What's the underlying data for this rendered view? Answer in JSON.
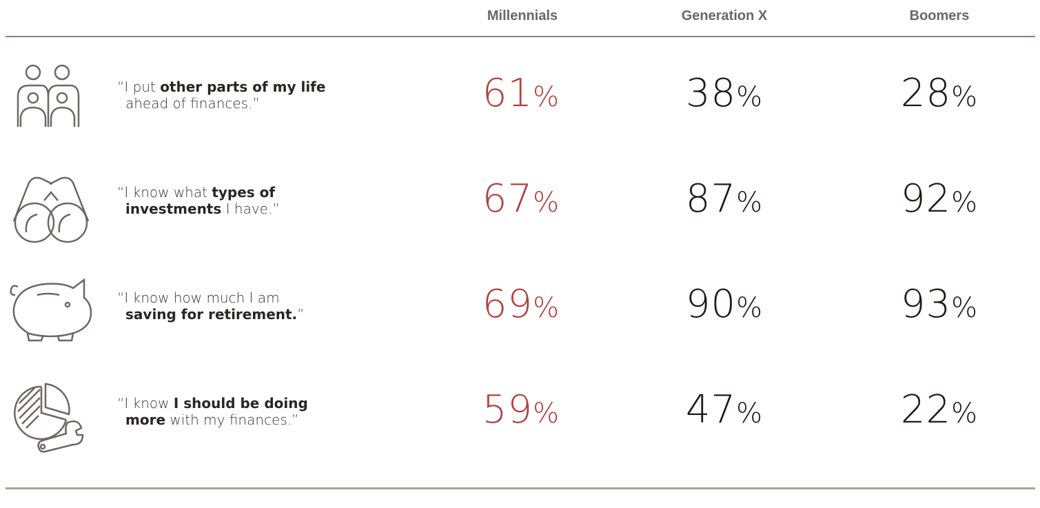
{
  "chart_data": {
    "type": "table",
    "columns": [
      "Millennials",
      "Generation X",
      "Boomers"
    ],
    "highlight_color": "#b0413e",
    "value_suffix": "%",
    "rows": [
      {
        "icon": "people-icon",
        "statement": {
          "open": "“I put ",
          "bold1": "other parts of my life",
          "mid": "",
          "bold2": "",
          "close": "ahead of finances.”"
        },
        "values": [
          "61",
          "38",
          "28"
        ]
      },
      {
        "icon": "binoculars-icon",
        "statement": {
          "open": "“I know what ",
          "bold1": "types of",
          "mid": "",
          "bold2": "investments",
          "close": " I have.”"
        },
        "values": [
          "67",
          "87",
          "92"
        ]
      },
      {
        "icon": "piggy-bank-icon",
        "statement": {
          "open": "“I know how much I am",
          "bold1": "",
          "mid": "",
          "bold2": "saving for retirement.",
          "close": "”"
        },
        "values": [
          "69",
          "90",
          "93"
        ]
      },
      {
        "icon": "pie-chart-wrench-icon",
        "statement": {
          "open": "“I know ",
          "bold1": "I should be doing",
          "mid": "",
          "bold2": "more",
          "close": " with my finances.”"
        },
        "values": [
          "59",
          "47",
          "22"
        ]
      }
    ]
  }
}
